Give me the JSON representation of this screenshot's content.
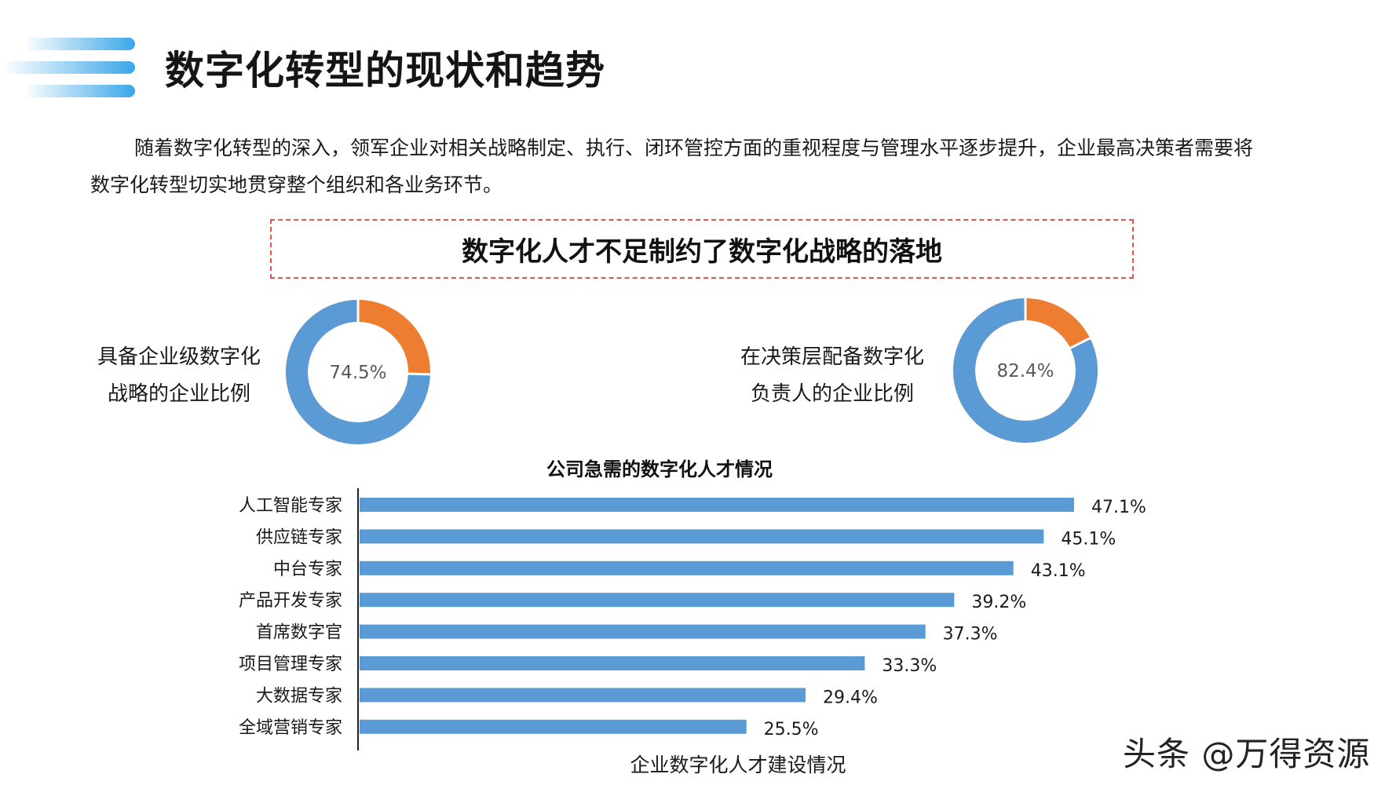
{
  "header": {
    "title": "数字化转型的现状和趋势"
  },
  "intro": {
    "line1": "随着数字化转型的深入，领军企业对相关战略制定、执行、闭环管控方面的重视程度与管理水平逐步提升，企业最高决策者需要将",
    "line2": "数字化转型切实地贯穿整个组织和各业务环节。"
  },
  "callout": {
    "text": "数字化人才不足制约了数字化战略的落地"
  },
  "donuts": [
    {
      "label_line1": "具备企业级数字化",
      "label_line2": "战略的企业比例",
      "value_text": "74.5%",
      "value": 74.5,
      "color_main": "#5b9bd5",
      "color_rest": "#ed7d31"
    },
    {
      "label_line1": "在决策层配备数字化",
      "label_line2": "负责人的企业比例",
      "value_text": "82.4%",
      "value": 82.4,
      "color_main": "#5b9bd5",
      "color_rest": "#ed7d31"
    }
  ],
  "chart_data": {
    "type": "bar",
    "orientation": "horizontal",
    "title": "公司急需的数字化人才情况",
    "categories": [
      "人工智能专家",
      "供应链专家",
      "中台专家",
      "产品开发专家",
      "首席数字官",
      "项目管理专家",
      "大数据专家",
      "全域营销专家"
    ],
    "values": [
      47.1,
      45.1,
      43.1,
      39.2,
      37.3,
      33.3,
      29.4,
      25.5
    ],
    "value_labels": [
      "47.1%",
      "45.1%",
      "43.1%",
      "39.2%",
      "37.3%",
      "33.3%",
      "29.4%",
      "25.5%"
    ],
    "bar_color": "#5b9bd5",
    "xlim": [
      0,
      50
    ],
    "grid": false
  },
  "footer": {
    "label": "企业数字化人才建设情况"
  },
  "watermark": {
    "text": "头条 @万得资源"
  }
}
